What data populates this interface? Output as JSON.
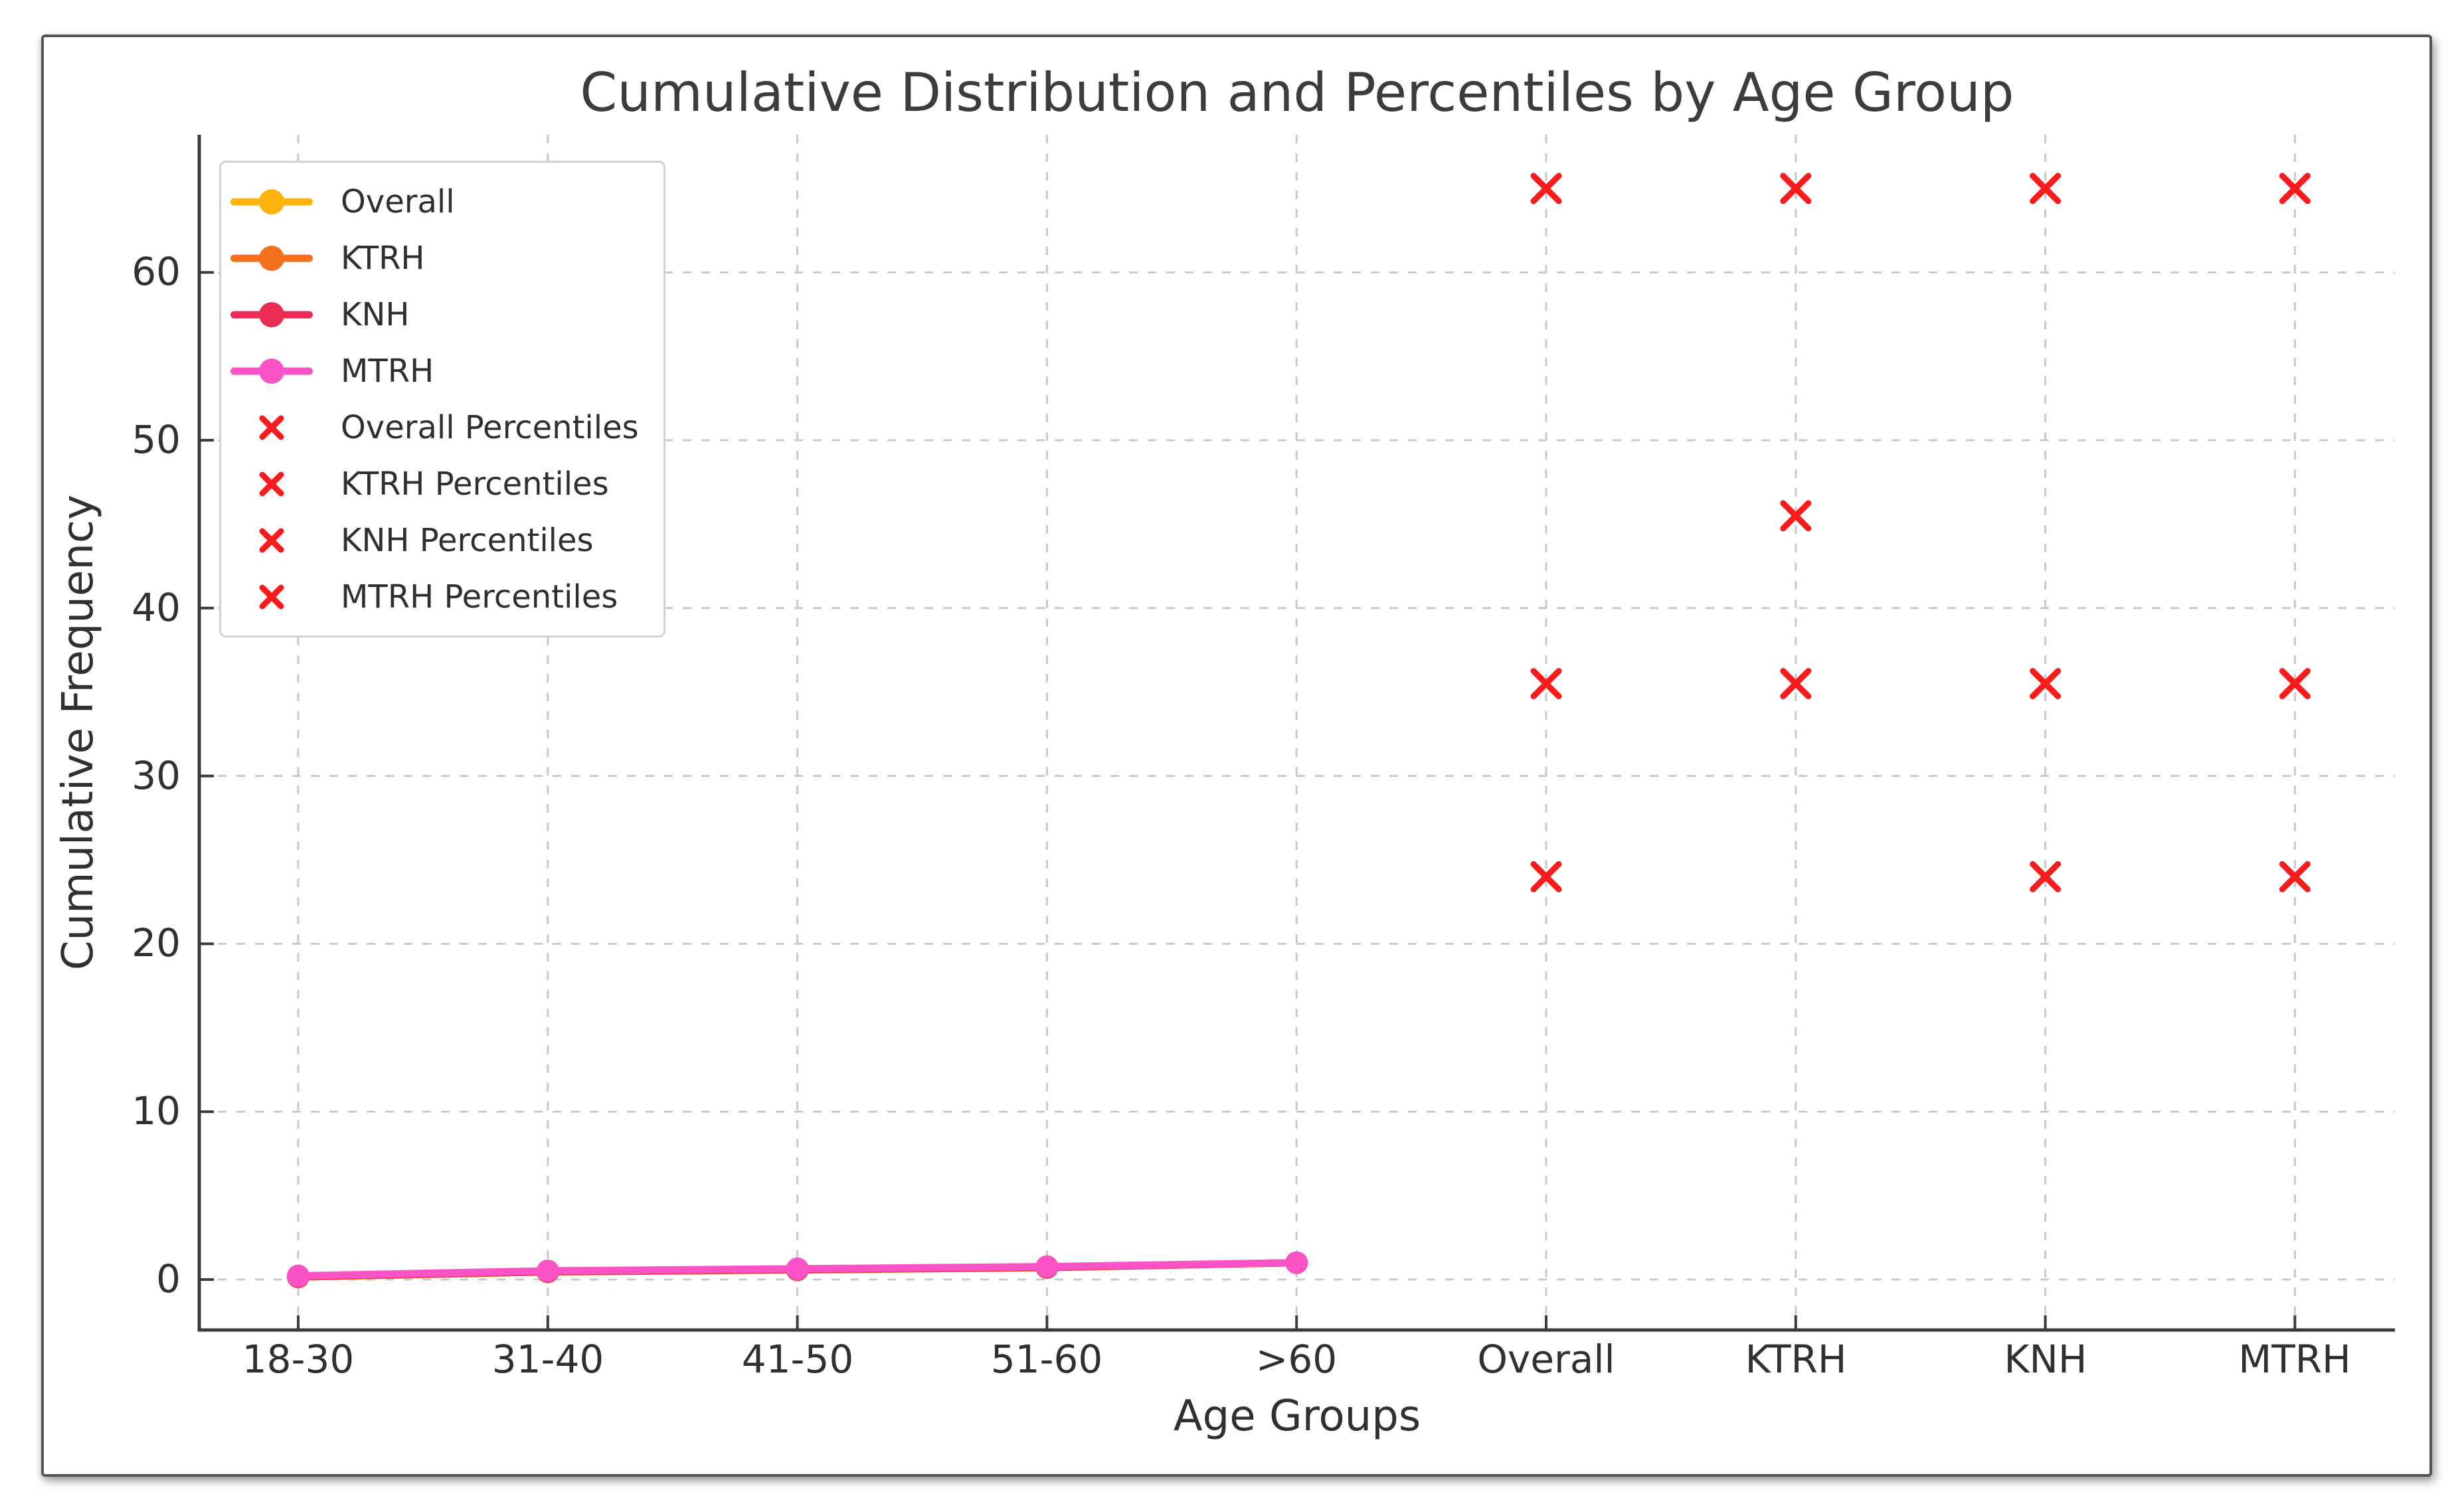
{
  "colors": {
    "grid": "#c9c9c9",
    "axis": "#3b3b3b",
    "text": "#303030",
    "percentile_marker": "#fb1b1c"
  },
  "chart_data": {
    "type": "line",
    "title": "Cumulative Distribution and Percentiles by Age Group",
    "xlabel": "Age Groups",
    "ylabel": "Cumulative Frequency",
    "categories": [
      "18-30",
      "31-40",
      "41-50",
      "51-60",
      ">60",
      "Overall",
      "KTRH",
      "KNH",
      "MTRH"
    ],
    "yticks": [
      0,
      10,
      20,
      30,
      40,
      50,
      60
    ],
    "ylim": [
      -3.2,
      68
    ],
    "grid": true,
    "legend_position": "upper left",
    "series": [
      {
        "name": "Overall",
        "color": "#FFB30F",
        "x": [
          "18-30",
          "31-40",
          "41-50",
          "51-60",
          ">60"
        ],
        "values": [
          0.2,
          0.5,
          0.62,
          0.75,
          1.0
        ]
      },
      {
        "name": "KTRH",
        "color": "#F2701E",
        "x": [
          "18-30",
          "31-40",
          "41-50",
          "51-60",
          ">60"
        ],
        "values": [
          0.15,
          0.45,
          0.57,
          0.71,
          1.0
        ]
      },
      {
        "name": "KNH",
        "color": "#EB2D56",
        "x": [
          "18-30",
          "31-40",
          "41-50",
          "51-60",
          ">60"
        ],
        "values": [
          0.18,
          0.48,
          0.6,
          0.73,
          1.0
        ]
      },
      {
        "name": "MTRH",
        "color": "#FA53C6",
        "x": [
          "18-30",
          "31-40",
          "41-50",
          "51-60",
          ">60"
        ],
        "values": [
          0.22,
          0.52,
          0.64,
          0.77,
          1.0
        ]
      }
    ],
    "percentile_series": [
      {
        "name": "Overall Percentiles",
        "category": "Overall",
        "color": "#fb1b1c",
        "values": [
          24,
          35.5,
          65
        ]
      },
      {
        "name": "KTRH Percentiles",
        "category": "KTRH",
        "color": "#fb1b1c",
        "values": [
          35.5,
          45.5,
          65
        ]
      },
      {
        "name": "KNH Percentiles",
        "category": "KNH",
        "color": "#fb1b1c",
        "values": [
          24,
          35.5,
          65
        ]
      },
      {
        "name": "MTRH Percentiles",
        "category": "MTRH",
        "color": "#fb1b1c",
        "values": [
          24,
          35.5,
          65
        ]
      }
    ],
    "legend": [
      {
        "label": "Overall",
        "type": "line",
        "color": "#FFB30F"
      },
      {
        "label": "KTRH",
        "type": "line",
        "color": "#F2701E"
      },
      {
        "label": "KNH",
        "type": "line",
        "color": "#EB2D56"
      },
      {
        "label": "MTRH",
        "type": "line",
        "color": "#FA53C6"
      },
      {
        "label": "Overall Percentiles",
        "type": "x",
        "color": "#fb1b1c"
      },
      {
        "label": "KTRH Percentiles",
        "type": "x",
        "color": "#fb1b1c"
      },
      {
        "label": "KNH Percentiles",
        "type": "x",
        "color": "#fb1b1c"
      },
      {
        "label": "MTRH Percentiles",
        "type": "x",
        "color": "#fb1b1c"
      }
    ]
  }
}
